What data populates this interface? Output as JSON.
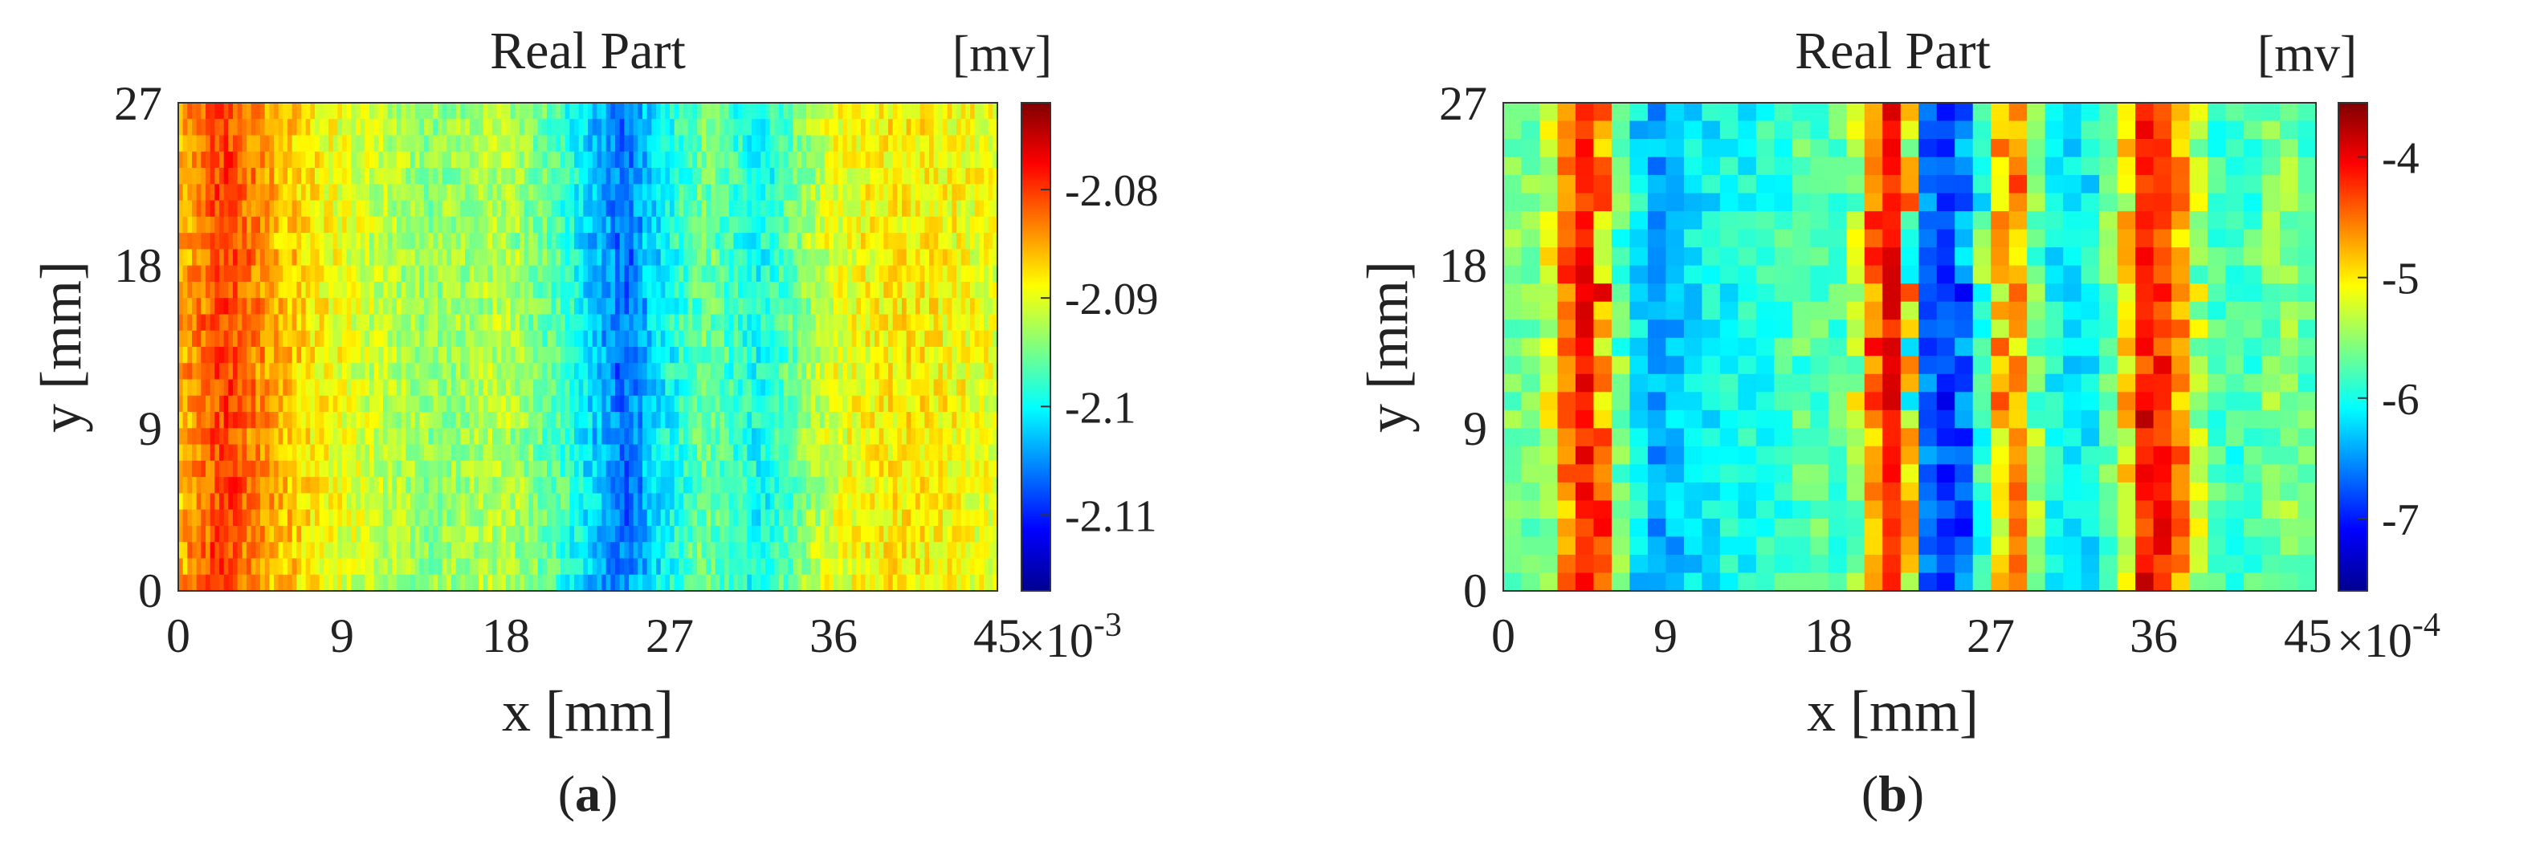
{
  "chart_data": [
    {
      "type": "heatmap",
      "title": "Real Part",
      "xlabel": "x [mm]",
      "ylabel": "y [mm]",
      "xlim": [
        0,
        45
      ],
      "ylim": [
        0,
        27
      ],
      "xticks": [
        "0",
        "9",
        "18",
        "27",
        "36",
        "45"
      ],
      "yticks": [
        "0",
        "9",
        "18",
        "27"
      ],
      "colorbar": {
        "unit": "[mv]",
        "range": [
          -2.117,
          -2.072
        ],
        "ticks": [
          "-2.08",
          "-2.09",
          "-2.1",
          "-2.11"
        ],
        "tick_values": [
          -2.08,
          -2.09,
          -2.1,
          -2.11
        ],
        "multiplier": "×10",
        "exponent": "-3",
        "colormap": "jet"
      },
      "grid": {
        "columns": 180,
        "rows": 30
      },
      "profile_x": [
        0,
        2.5,
        5,
        9,
        14,
        18,
        21,
        24.5,
        26,
        29,
        32,
        36,
        40,
        45
      ],
      "profile_value": [
        -2.086,
        -2.08,
        -2.085,
        -2.09,
        -2.094,
        -2.092,
        -2.097,
        -2.107,
        -2.102,
        -2.095,
        -2.1,
        -2.09,
        -2.088,
        -2.09
      ],
      "noise": 0.006,
      "caption": "a"
    },
    {
      "type": "heatmap",
      "title": "Real Part",
      "xlabel": "x [mm]",
      "ylabel": "y [mm]",
      "xlim": [
        0,
        45
      ],
      "ylim": [
        0,
        27
      ],
      "xticks": [
        "0",
        "9",
        "18",
        "27",
        "36",
        "45"
      ],
      "yticks": [
        "0",
        "9",
        "18",
        "27"
      ],
      "colorbar": {
        "unit": "[mv]",
        "range": [
          -7.6,
          -3.55
        ],
        "ticks": [
          "-4",
          "-5",
          "-6",
          "-7"
        ],
        "tick_values": [
          -4,
          -5,
          -6,
          -7
        ],
        "multiplier": "×10",
        "exponent": "-4",
        "colormap": "jet"
      },
      "grid": {
        "columns": 45,
        "rows": 27
      },
      "profile_x": [
        0,
        2,
        4,
        5,
        6,
        8,
        11,
        14,
        17,
        19,
        21,
        22,
        23,
        25,
        27,
        28,
        30,
        32,
        34,
        35.5,
        37,
        39,
        41,
        43,
        45
      ],
      "profile_value": [
        -5.6,
        -5.6,
        -4.2,
        -4.0,
        -5.4,
        -6.5,
        -6.1,
        -6.0,
        -5.7,
        -5.8,
        -4.1,
        -4.0,
        -6.5,
        -7.0,
        -5.4,
        -4.3,
        -6.0,
        -6.2,
        -5.5,
        -4.0,
        -4.3,
        -5.8,
        -5.9,
        -5.5,
        -5.8
      ],
      "noise": 0.5,
      "caption": "b"
    }
  ]
}
